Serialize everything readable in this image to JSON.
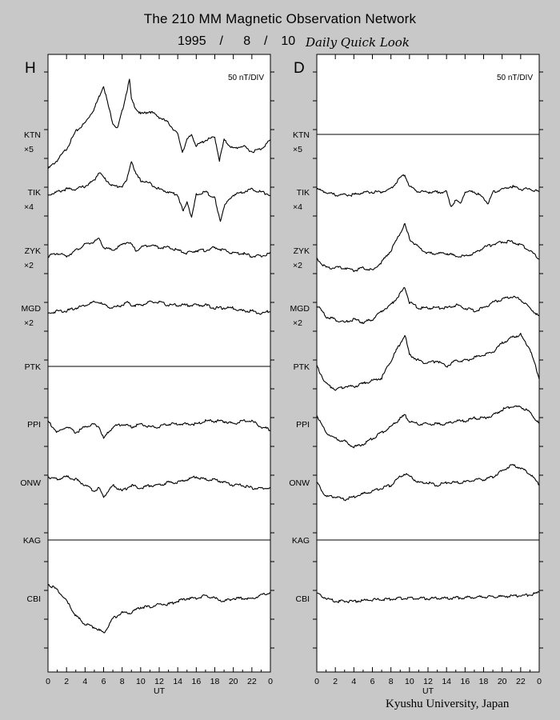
{
  "header": {
    "title": "The 210 MM Magnetic Observation Network",
    "date": "1995  /   8  /  10",
    "subtitle": "Daily Quick Look"
  },
  "footer": {
    "credit": "Kyushu University, Japan"
  },
  "chart_data": {
    "type": "line",
    "title": "The 210 MM Magnetic Observation Network",
    "xlabel": "UT",
    "x_ticks": [
      "0",
      "2",
      "4",
      "6",
      "8",
      "10",
      "12",
      "14",
      "16",
      "18",
      "20",
      "22",
      "0"
    ],
    "xlim": [
      0,
      24
    ],
    "scale": "50 nT/DIV",
    "grid": false,
    "stations": [
      {
        "code": "KTN",
        "multiplier": "×5"
      },
      {
        "code": "TIK",
        "multiplier": "×4"
      },
      {
        "code": "ZYK",
        "multiplier": "×2"
      },
      {
        "code": "MGD",
        "multiplier": "×2"
      },
      {
        "code": "PTK",
        "multiplier": ""
      },
      {
        "code": "PPI",
        "multiplier": ""
      },
      {
        "code": "ONW",
        "multiplier": ""
      },
      {
        "code": "KAG",
        "multiplier": ""
      },
      {
        "code": "CBI",
        "multiplier": ""
      }
    ],
    "panels": [
      {
        "component": "H",
        "scale": "50 nT/DIV",
        "series": [
          {
            "name": "KTN",
            "x": [
              0,
              1,
              2,
              3,
              4,
              5,
              5.5,
              6,
              6.5,
              7,
              7.5,
              8,
              8.5,
              8.8,
              9,
              9.5,
              10,
              11,
              12,
              13,
              14,
              14.5,
              15,
              15.5,
              16,
              17,
              18,
              18.5,
              19,
              20,
              21,
              22,
              23,
              24
            ],
            "y": [
              -1.2,
              -0.9,
              -0.5,
              0.1,
              0.4,
              0.9,
              1.3,
              1.7,
              1.0,
              0.4,
              0.2,
              0.8,
              1.5,
              1.9,
              1.2,
              0.9,
              0.7,
              0.8,
              0.6,
              0.4,
              0.0,
              -0.6,
              -0.2,
              0.0,
              -0.4,
              -0.2,
              -0.1,
              -0.9,
              -0.2,
              -0.5,
              -0.4,
              -0.6,
              -0.5,
              -0.2
            ]
          },
          {
            "name": "TIK",
            "x": [
              0,
              1,
              2,
              3,
              4,
              5,
              5.5,
              6,
              7,
              8,
              8.5,
              9,
              9.5,
              10,
              11,
              12,
              13,
              14,
              14.3,
              14.6,
              15,
              15.5,
              16,
              17,
              18,
              18.3,
              18.6,
              19,
              20,
              21,
              22,
              23,
              24
            ],
            "y": [
              -0.1,
              0.0,
              0.1,
              0.1,
              0.2,
              0.4,
              0.7,
              0.5,
              0.2,
              0.2,
              0.4,
              1.1,
              0.6,
              0.4,
              0.3,
              0.1,
              0.0,
              -0.1,
              -0.4,
              -0.7,
              -0.3,
              -0.9,
              -0.1,
              0.0,
              -0.2,
              -0.7,
              -1.0,
              -0.5,
              -0.1,
              0.0,
              0.1,
              0.0,
              -0.1
            ]
          },
          {
            "name": "ZYK",
            "x": [
              0,
              1,
              2,
              3,
              4,
              5,
              5.5,
              6,
              7,
              8,
              8.5,
              9,
              9.5,
              10,
              11,
              12,
              13,
              14,
              15,
              16,
              17,
              18,
              19,
              20,
              21,
              22,
              23,
              24
            ],
            "y": [
              -0.2,
              -0.1,
              -0.2,
              0.0,
              0.2,
              0.3,
              0.4,
              0.1,
              0.0,
              0.2,
              0.3,
              0.2,
              0.0,
              0.1,
              0.2,
              0.1,
              0.1,
              0.0,
              -0.1,
              0.0,
              0.0,
              0.1,
              0.0,
              -0.1,
              -0.1,
              -0.2,
              -0.2,
              -0.1
            ]
          },
          {
            "name": "MGD",
            "x": [
              0,
              1,
              2,
              3,
              4,
              5,
              5.5,
              6,
              7,
              8,
              8.5,
              9,
              10,
              11,
              12,
              13,
              14,
              15,
              16,
              17,
              18,
              19,
              20,
              21,
              22,
              23,
              24
            ],
            "y": [
              -0.2,
              -0.1,
              -0.1,
              0.0,
              0.1,
              0.2,
              0.2,
              0.1,
              0.0,
              0.1,
              0.2,
              0.1,
              0.1,
              0.2,
              0.2,
              0.1,
              0.1,
              0.1,
              0.1,
              0.1,
              0.0,
              0.0,
              0.0,
              -0.1,
              -0.1,
              -0.2,
              -0.1
            ]
          },
          {
            "name": "PTK",
            "x": [
              0,
              24
            ],
            "y": [
              0,
              0
            ]
          },
          {
            "name": "PPI",
            "x": [
              0,
              1,
              2,
              3,
              4,
              5,
              5.5,
              6,
              7,
              8,
              9,
              10,
              11,
              12,
              13,
              14,
              15,
              16,
              17,
              18,
              19,
              20,
              21,
              22,
              23,
              24
            ],
            "y": [
              0.1,
              -0.3,
              -0.1,
              -0.3,
              -0.1,
              0.0,
              -0.1,
              -0.5,
              -0.1,
              0.0,
              -0.1,
              0.0,
              -0.1,
              -0.1,
              0.0,
              0.0,
              0.0,
              0.0,
              0.1,
              0.1,
              0.1,
              0.0,
              0.1,
              0.1,
              -0.1,
              -0.2
            ]
          },
          {
            "name": "ONW",
            "x": [
              0,
              1,
              2,
              3,
              4,
              5,
              5.5,
              6,
              7,
              8,
              9,
              10,
              11,
              12,
              13,
              14,
              15,
              16,
              17,
              18,
              19,
              20,
              21,
              22,
              23,
              24
            ],
            "y": [
              0.2,
              0.1,
              0.2,
              0.1,
              -0.1,
              -0.3,
              -0.2,
              -0.5,
              -0.1,
              -0.3,
              -0.1,
              -0.2,
              -0.1,
              -0.1,
              0.0,
              0.0,
              0.1,
              0.2,
              0.1,
              0.1,
              0.0,
              -0.1,
              -0.1,
              -0.2,
              -0.2,
              -0.2
            ]
          },
          {
            "name": "KAG",
            "x": [
              0,
              24
            ],
            "y": [
              0,
              0
            ]
          },
          {
            "name": "CBI",
            "x": [
              0,
              0.5,
              1,
              2,
              3,
              4,
              5,
              5.5,
              6,
              7,
              8,
              9,
              10,
              11,
              12,
              13,
              14,
              15,
              16,
              17,
              18,
              19,
              20,
              21,
              22,
              23,
              24
            ],
            "y": [
              0.5,
              0.4,
              0.3,
              -0.1,
              -0.6,
              -0.9,
              -1.0,
              -1.1,
              -1.2,
              -0.7,
              -0.5,
              -0.5,
              -0.3,
              -0.3,
              -0.2,
              -0.2,
              -0.1,
              0.0,
              0.0,
              0.1,
              0.0,
              -0.1,
              0.0,
              0.0,
              0.0,
              0.1,
              0.2
            ]
          }
        ]
      },
      {
        "component": "D",
        "scale": "50 nT/DIV",
        "series": [
          {
            "name": "KTN",
            "x": [
              0,
              24
            ],
            "y": [
              0,
              0
            ]
          },
          {
            "name": "TIK",
            "x": [
              0,
              1,
              2,
              3,
              4,
              5,
              6,
              7,
              8,
              9,
              9.5,
              10,
              11,
              12,
              13,
              14,
              14.5,
              15,
              15.5,
              16,
              17,
              18,
              18.5,
              19,
              20,
              21,
              22,
              23,
              24
            ],
            "y": [
              0.1,
              0.0,
              -0.1,
              -0.1,
              -0.1,
              0.0,
              0.0,
              0.0,
              0.1,
              0.5,
              0.6,
              0.2,
              0.0,
              0.0,
              0.0,
              0.0,
              -0.5,
              -0.3,
              -0.4,
              0.0,
              0.0,
              -0.2,
              -0.4,
              0.0,
              0.1,
              0.2,
              0.1,
              0.1,
              0.0
            ]
          },
          {
            "name": "ZYK",
            "x": [
              0,
              1,
              2,
              3,
              4,
              5,
              6,
              7,
              8,
              9,
              9.5,
              10,
              11,
              12,
              13,
              14,
              15,
              16,
              17,
              18,
              19,
              20,
              21,
              22,
              23,
              24
            ],
            "y": [
              -0.3,
              -0.6,
              -0.6,
              -0.6,
              -0.7,
              -0.6,
              -0.7,
              -0.4,
              0.0,
              0.6,
              0.9,
              0.4,
              0.1,
              -0.1,
              -0.1,
              -0.1,
              -0.2,
              -0.2,
              -0.1,
              0.1,
              0.2,
              0.3,
              0.3,
              0.2,
              0.0,
              -0.3
            ]
          },
          {
            "name": "MGD",
            "x": [
              0,
              1,
              2,
              3,
              4,
              5,
              6,
              7,
              8,
              9,
              9.5,
              10,
              11,
              12,
              13,
              14,
              15,
              16,
              17,
              18,
              19,
              20,
              21,
              22,
              23,
              24
            ],
            "y": [
              0.1,
              -0.3,
              -0.4,
              -0.5,
              -0.4,
              -0.5,
              -0.4,
              -0.1,
              0.1,
              0.5,
              0.7,
              0.2,
              0.0,
              0.0,
              0.0,
              0.0,
              0.1,
              0.0,
              -0.1,
              0.0,
              0.2,
              0.3,
              0.4,
              0.3,
              0.0,
              -0.3
            ]
          },
          {
            "name": "PTK",
            "x": [
              0,
              1,
              2,
              3,
              4,
              5,
              6,
              7,
              8,
              9,
              9.5,
              10,
              11,
              12,
              13,
              14,
              15,
              16,
              17,
              18,
              19,
              20,
              21,
              22,
              23,
              24
            ],
            "y": [
              0.0,
              -0.6,
              -0.8,
              -0.7,
              -0.7,
              -0.6,
              -0.5,
              -0.4,
              0.2,
              0.8,
              1.1,
              0.4,
              0.2,
              0.1,
              0.2,
              0.0,
              0.2,
              0.2,
              0.3,
              0.4,
              0.5,
              0.8,
              1.0,
              1.1,
              0.6,
              -0.4
            ]
          },
          {
            "name": "PPI",
            "x": [
              0,
              1,
              2,
              3,
              4,
              5,
              6,
              7,
              8,
              9,
              9.5,
              10,
              11,
              12,
              13,
              14,
              15,
              16,
              17,
              18,
              19,
              20,
              21,
              22,
              23,
              24
            ],
            "y": [
              0.3,
              -0.3,
              -0.5,
              -0.6,
              -0.8,
              -0.7,
              -0.5,
              -0.3,
              -0.1,
              0.2,
              0.3,
              0.1,
              0.0,
              0.0,
              0.0,
              0.0,
              0.1,
              0.1,
              0.2,
              0.2,
              0.3,
              0.5,
              0.6,
              0.6,
              0.4,
              0.0
            ]
          },
          {
            "name": "ONW",
            "x": [
              0,
              1,
              2,
              3,
              4,
              5,
              6,
              7,
              8,
              9,
              9.5,
              10,
              11,
              12,
              13,
              14,
              15,
              16,
              17,
              18,
              19,
              20,
              21,
              22,
              23,
              24
            ],
            "y": [
              0.0,
              -0.5,
              -0.5,
              -0.6,
              -0.5,
              -0.4,
              -0.3,
              -0.2,
              -0.1,
              0.2,
              0.3,
              0.2,
              0.0,
              0.0,
              -0.1,
              0.0,
              0.0,
              0.0,
              0.1,
              0.1,
              0.2,
              0.4,
              0.6,
              0.5,
              0.3,
              -0.1
            ]
          },
          {
            "name": "KAG",
            "x": [
              0,
              24
            ],
            "y": [
              0,
              0
            ]
          },
          {
            "name": "CBI",
            "x": [
              0,
              0.5,
              1,
              2,
              3,
              4,
              5,
              6,
              7,
              8,
              9,
              10,
              11,
              12,
              13,
              14,
              15,
              16,
              17,
              18,
              19,
              20,
              21,
              22,
              23,
              24
            ],
            "y": [
              0.15,
              0.1,
              0.0,
              -0.1,
              -0.1,
              -0.1,
              -0.08,
              -0.05,
              -0.03,
              -0.02,
              0.0,
              0.0,
              0.0,
              0.0,
              0.0,
              0.0,
              0.02,
              0.03,
              0.04,
              0.05,
              0.06,
              0.07,
              0.08,
              0.1,
              0.12,
              0.2
            ]
          }
        ]
      }
    ]
  }
}
